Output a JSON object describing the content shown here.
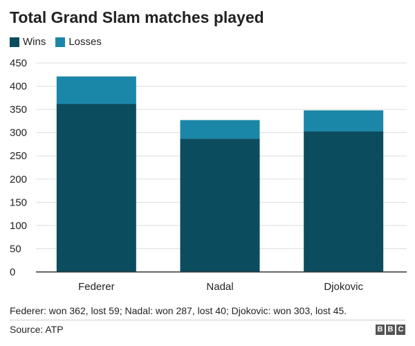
{
  "chart_data": {
    "type": "bar",
    "stacked": true,
    "title": "Total Grand Slam matches played",
    "categories": [
      "Federer",
      "Nadal",
      "Djokovic"
    ],
    "series": [
      {
        "name": "Wins",
        "values": [
          362,
          287,
          303
        ],
        "color": "#0b4c5f"
      },
      {
        "name": "Losses",
        "values": [
          59,
          40,
          45
        ],
        "color": "#1b87a8"
      }
    ],
    "ylim": [
      0,
      450
    ],
    "yticks": [
      "0",
      "50",
      "100",
      "150",
      "200",
      "250",
      "300",
      "350",
      "400",
      "450"
    ],
    "grid": true,
    "legend_position": "top-left",
    "footnote": "Federer: won 362, lost 59; Nadal: won 287, lost 40; Djokovic: won 303, lost 45.",
    "source": "Source: ATP"
  },
  "branding": {
    "letters": [
      "B",
      "B",
      "C"
    ]
  }
}
